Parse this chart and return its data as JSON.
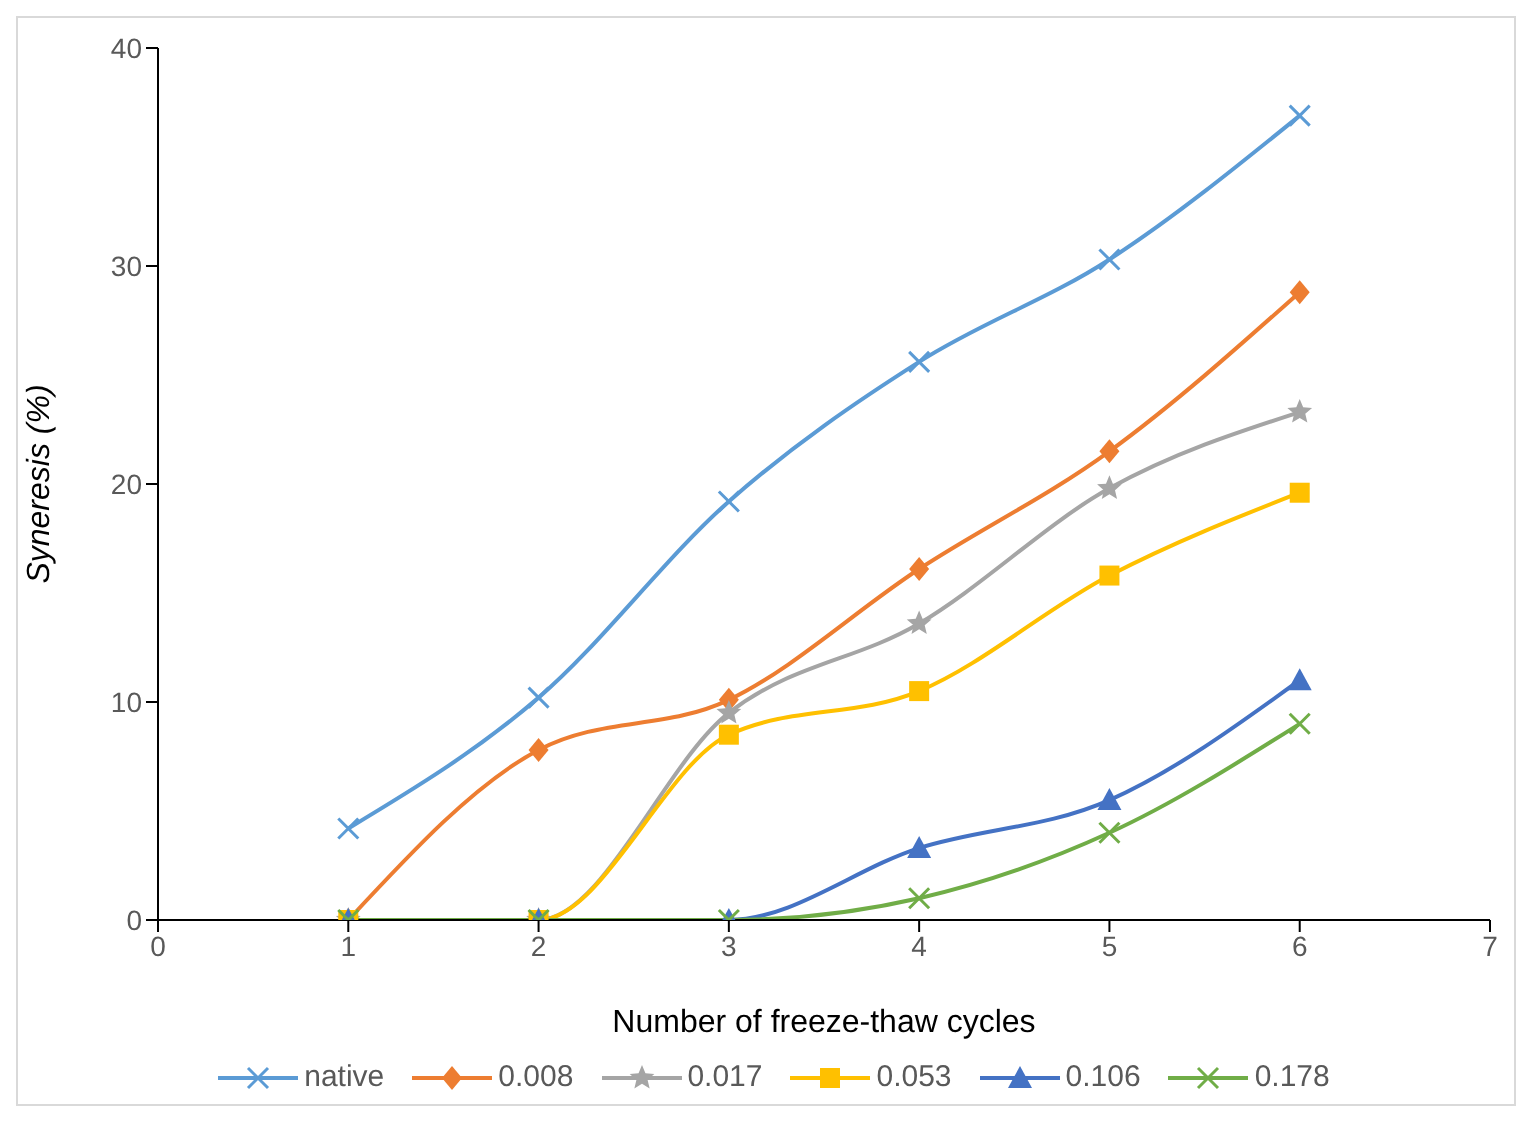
{
  "chart_data": {
    "type": "line",
    "xlabel": "Number of freeze-thaw cycles",
    "ylabel": "Syneresis (%)",
    "x": [
      1,
      2,
      3,
      4,
      5,
      6
    ],
    "xlim": [
      0,
      7
    ],
    "xticks": [
      0,
      1,
      2,
      3,
      4,
      5,
      6,
      7
    ],
    "ylim": [
      0,
      40
    ],
    "yticks": [
      0,
      10,
      20,
      30,
      40
    ],
    "grid": false,
    "legend": "bottom",
    "series": [
      {
        "name": "native",
        "color": "#5b9bd5",
        "marker": "cross",
        "values": [
          4.2,
          10.2,
          19.2,
          25.6,
          30.3,
          36.9
        ]
      },
      {
        "name": "0.008",
        "color": "#ed7d31",
        "marker": "diamond",
        "values": [
          0,
          7.8,
          10.1,
          16.1,
          21.5,
          28.8
        ]
      },
      {
        "name": "0.017",
        "color": "#a5a5a5",
        "marker": "star",
        "values": [
          0,
          0,
          9.5,
          13.6,
          19.8,
          23.3
        ]
      },
      {
        "name": "0.053",
        "color": "#ffc000",
        "marker": "square",
        "values": [
          0,
          0,
          8.5,
          10.5,
          15.8,
          19.6
        ]
      },
      {
        "name": "0.106",
        "color": "#4472c4",
        "marker": "triangle",
        "values": [
          0,
          0,
          0,
          3.3,
          5.5,
          11
        ]
      },
      {
        "name": "0.178",
        "color": "#70ad47",
        "marker": "cross",
        "values": [
          0,
          0,
          0,
          1,
          4,
          9
        ]
      }
    ]
  }
}
